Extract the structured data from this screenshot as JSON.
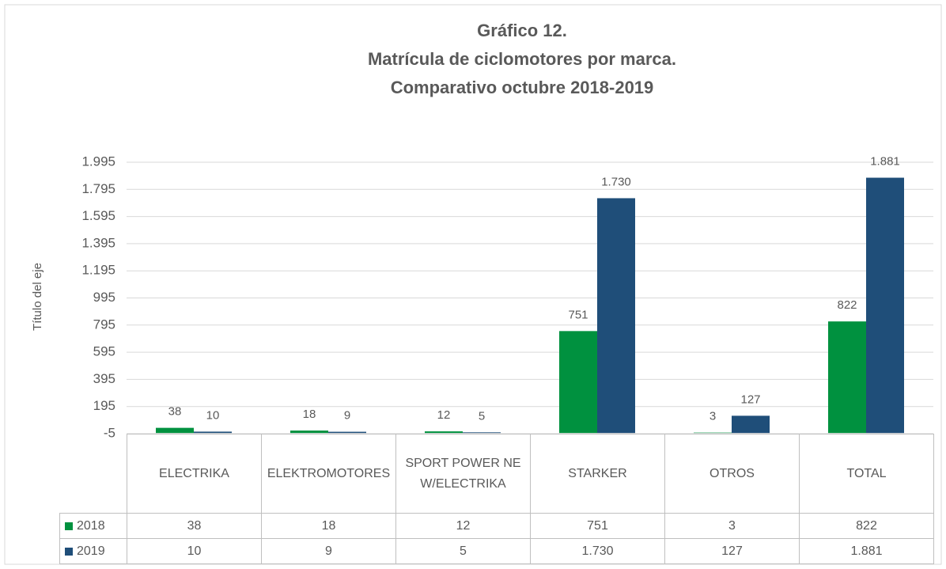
{
  "chart_data": {
    "type": "bar",
    "title": "Gráfico 12.",
    "subtitle": [
      "Matrícula de ciclomotores por marca.",
      "Comparativo octubre 2018-2019"
    ],
    "y_label": "Título del eje",
    "categories": [
      "ELECTRIKA",
      "ELEKTROMOTORES",
      "SPORT POWER NEW/ELECTRIKA",
      "STARKER",
      "OTROS",
      "TOTAL"
    ],
    "series": [
      {
        "name": "2018",
        "color": "#00913f",
        "values": [
          38,
          18,
          12,
          751,
          3,
          822
        ],
        "value_labels": [
          "38",
          "18",
          "12",
          "751",
          "3",
          "822"
        ]
      },
      {
        "name": "2019",
        "color": "#1f4e79",
        "values": [
          10,
          9,
          5,
          1730,
          127,
          1881
        ],
        "value_labels": [
          "10",
          "9",
          "5",
          "1.730",
          "127",
          "1.881"
        ]
      }
    ],
    "ylim": [
      -5,
      1995
    ],
    "yticks": [
      -5,
      195,
      395,
      595,
      795,
      995,
      {
        "value": 1195,
        "label": "1.195"
      },
      {
        "value": 1395,
        "label": "1.395"
      },
      {
        "value": 1595,
        "label": "1.595"
      },
      {
        "value": 1795,
        "label": "1.795"
      },
      {
        "value": 1995,
        "label": "1.995"
      }
    ],
    "grid": true
  }
}
